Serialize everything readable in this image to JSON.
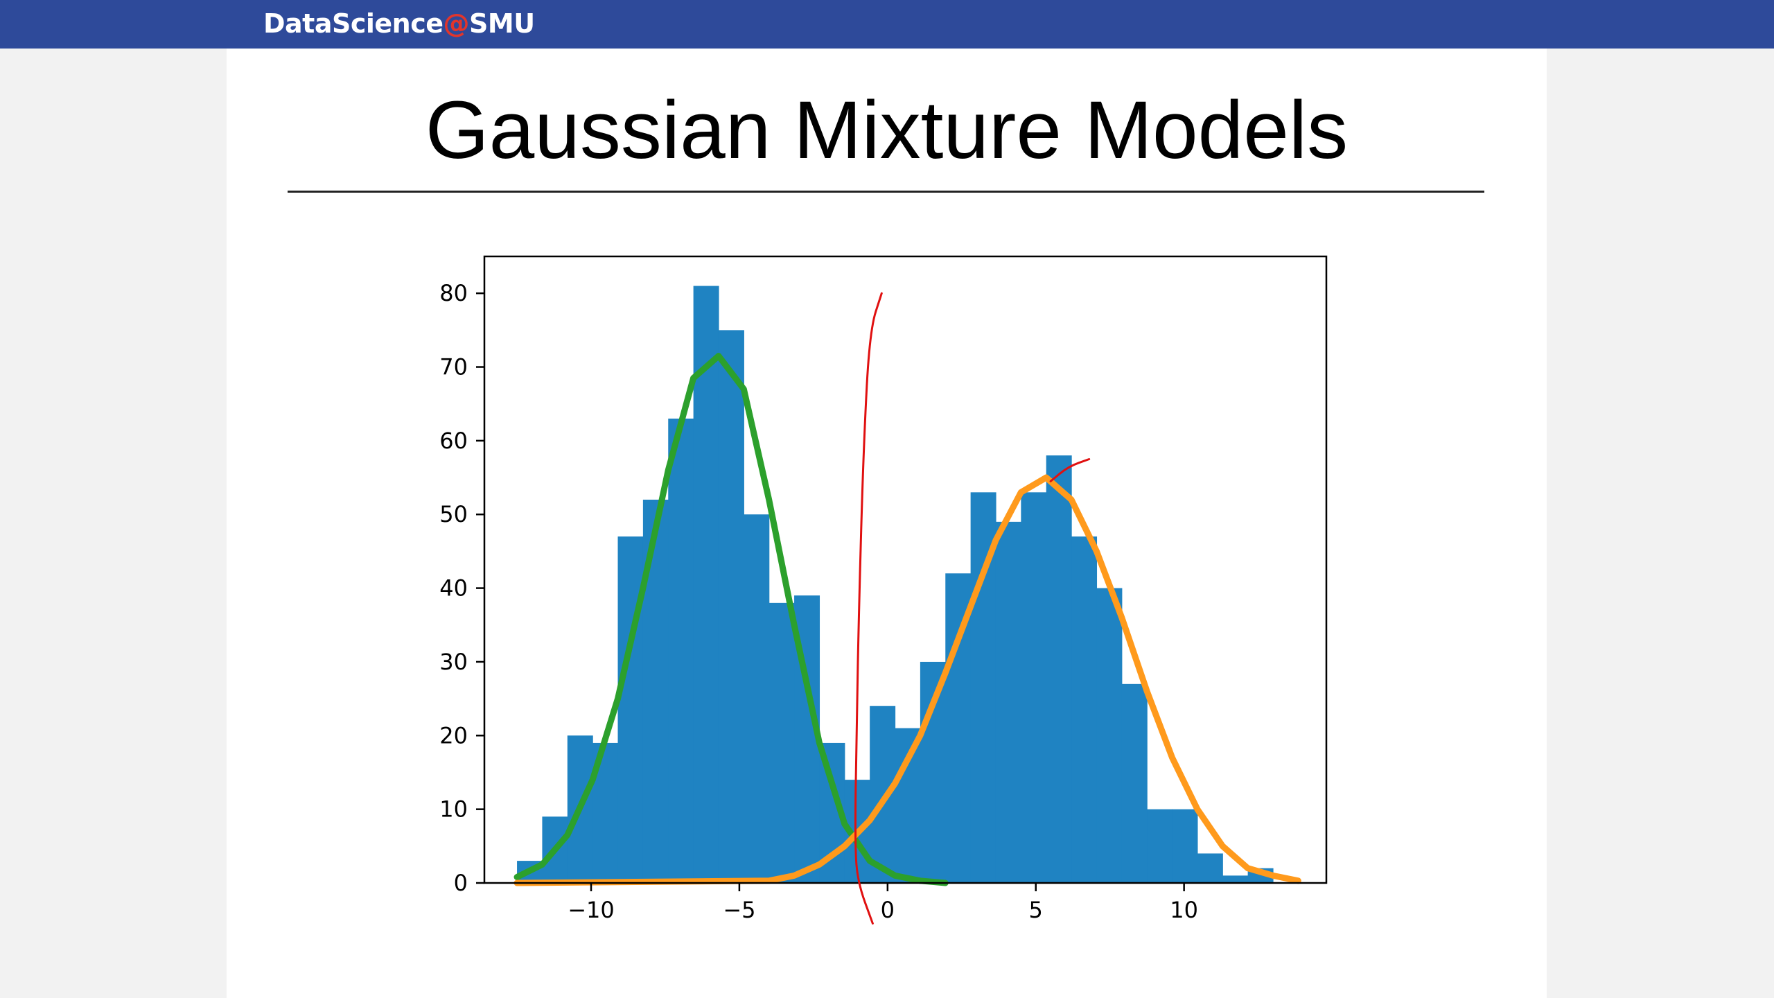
{
  "brand": {
    "name": "DataScience",
    "at": "@",
    "org": "SMU"
  },
  "slide": {
    "title": "Gaussian Mixture Models"
  },
  "colors": {
    "header_bar": "#2e4a9a",
    "brand_at": "#e2352b",
    "histogram": "#1f83c2",
    "component_left": "#2ca02c",
    "component_right": "#ff9a1c",
    "annotation": "#e01010"
  },
  "chart_data": {
    "type": "bar",
    "subtype": "histogram with fitted Gaussian component curves",
    "title": "",
    "xlabel": "",
    "ylabel": "",
    "xlim": [
      -13.6,
      14.8
    ],
    "ylim": [
      0,
      85
    ],
    "xticks": [
      -10,
      -5,
      0,
      5,
      10
    ],
    "xtick_labels": [
      "−10",
      "−5",
      "0",
      "5",
      "10"
    ],
    "yticks": [
      0,
      10,
      20,
      30,
      40,
      50,
      60,
      70,
      80
    ],
    "ytick_labels": [
      "0",
      "10",
      "20",
      "30",
      "40",
      "50",
      "60",
      "70",
      "80"
    ],
    "grid": false,
    "bin_edges": [
      -12.5,
      -11.65,
      -10.8,
      -9.95,
      -9.1,
      -8.25,
      -7.4,
      -6.55,
      -5.7,
      -4.85,
      -4.0,
      -3.15,
      -2.3,
      -1.45,
      -0.6,
      0.25,
      1.1,
      1.95,
      2.8,
      3.65,
      4.5,
      5.35,
      6.2,
      7.05,
      7.9,
      8.75,
      9.6,
      10.45,
      11.3,
      12.15,
      13.0,
      13.85
    ],
    "counts": [
      3,
      9,
      20,
      19,
      47,
      52,
      63,
      81,
      75,
      50,
      38,
      39,
      19,
      14,
      24,
      21,
      30,
      42,
      53,
      49,
      53,
      58,
      47,
      40,
      27,
      10,
      10,
      4,
      1,
      2,
      0
    ],
    "series": [
      {
        "x": [
          -12.5,
          -11.65,
          -10.8,
          -9.95,
          -9.1,
          -8.25,
          -7.4,
          -6.55,
          -5.7,
          -4.85,
          -4.0,
          -3.15,
          -2.3,
          -1.45,
          -0.6,
          0.25,
          1.1,
          1.95
        ],
        "values": [
          0.8,
          2.5,
          6.5,
          14,
          25,
          40,
          56,
          68.5,
          71.5,
          67,
          52,
          35,
          19,
          8,
          3,
          1,
          0.3,
          0
        ]
      },
      {
        "x": [
          -12.5,
          -4.0,
          -3.15,
          -2.3,
          -1.45,
          -0.6,
          0.25,
          1.1,
          1.95,
          2.8,
          3.65,
          4.5,
          5.35,
          6.2,
          7.05,
          7.9,
          8.75,
          9.6,
          10.45,
          11.3,
          12.15,
          13.0,
          13.85
        ],
        "values": [
          0,
          0.3,
          1,
          2.5,
          5,
          8.5,
          13.5,
          20,
          28.5,
          37.5,
          46.5,
          53,
          55,
          52,
          45,
          36,
          26,
          17,
          10,
          5,
          2,
          1,
          0.3
        ]
      }
    ],
    "annotations": [
      {
        "kind": "hand-drawn decision boundary",
        "points": [
          [
            -0.2,
            80
          ],
          [
            -0.6,
            75
          ],
          [
            -0.8,
            60
          ],
          [
            -0.95,
            40
          ],
          [
            -1.05,
            20
          ],
          [
            -1.1,
            5
          ],
          [
            -1.0,
            0
          ],
          [
            -0.5,
            -5.5
          ]
        ]
      },
      {
        "kind": "hand-drawn mark near right peak",
        "points": [
          [
            5.5,
            54.5
          ],
          [
            6.1,
            56.5
          ],
          [
            6.8,
            57.5
          ]
        ]
      }
    ]
  }
}
